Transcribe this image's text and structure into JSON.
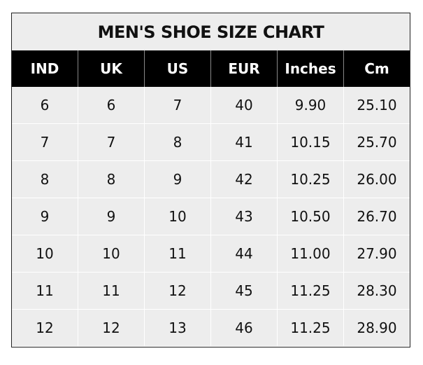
{
  "chart_data": {
    "type": "table",
    "title": "MEN'S SHOE SIZE CHART",
    "columns": [
      "IND",
      "UK",
      "US",
      "EUR",
      "Inches",
      "Cm"
    ],
    "rows": [
      [
        "6",
        "6",
        "7",
        "40",
        "9.90",
        "25.10"
      ],
      [
        "7",
        "7",
        "8",
        "41",
        "10.15",
        "25.70"
      ],
      [
        "8",
        "8",
        "9",
        "42",
        "10.25",
        "26.00"
      ],
      [
        "9",
        "9",
        "10",
        "43",
        "10.50",
        "26.70"
      ],
      [
        "10",
        "10",
        "11",
        "44",
        "11.00",
        "27.90"
      ],
      [
        "11",
        "11",
        "12",
        "45",
        "11.25",
        "28.30"
      ],
      [
        "12",
        "12",
        "13",
        "46",
        "11.25",
        "28.90"
      ]
    ],
    "colors": {
      "header_bg": "#000000",
      "header_text": "#ffffff",
      "cell_bg": "#ededed"
    }
  }
}
